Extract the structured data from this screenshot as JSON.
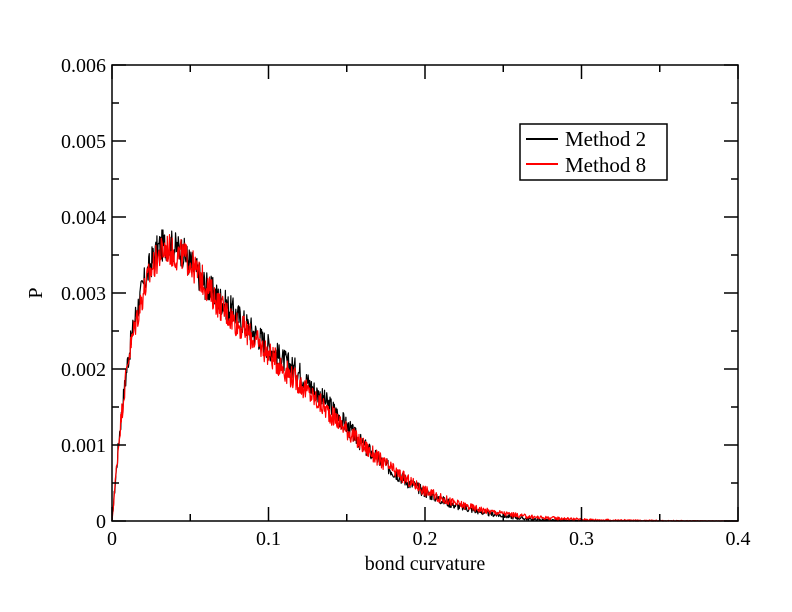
{
  "chart_data": {
    "type": "line",
    "title": "",
    "xlabel": "bond curvature",
    "ylabel": "P",
    "xlim": [
      0,
      0.4
    ],
    "ylim": [
      0,
      0.006
    ],
    "xticks": [
      "0",
      "0.1",
      "0.2",
      "0.3",
      "0.4"
    ],
    "yticks": [
      "0",
      "0.001",
      "0.002",
      "0.003",
      "0.004",
      "0.005",
      "0.006"
    ],
    "grid": false,
    "legend_position": "top-right",
    "series": [
      {
        "name": "Method 2",
        "color": "#000000",
        "x": [
          0,
          0.005,
          0.01,
          0.015,
          0.02,
          0.025,
          0.03,
          0.035,
          0.04,
          0.045,
          0.05,
          0.06,
          0.07,
          0.08,
          0.09,
          0.1,
          0.11,
          0.12,
          0.13,
          0.14,
          0.15,
          0.16,
          0.17,
          0.18,
          0.19,
          0.2,
          0.21,
          0.22,
          0.23,
          0.24,
          0.25,
          0.26,
          0.27,
          0.28,
          0.29,
          0.3,
          0.32,
          0.34,
          0.36,
          0.38,
          0.4
        ],
        "y": [
          0,
          0.0012,
          0.0021,
          0.0027,
          0.0031,
          0.0034,
          0.0036,
          0.00365,
          0.0036,
          0.00355,
          0.0034,
          0.0031,
          0.0029,
          0.0027,
          0.0025,
          0.0023,
          0.0021,
          0.00195,
          0.0017,
          0.0015,
          0.00125,
          0.001,
          0.00082,
          0.00065,
          0.0005,
          0.00038,
          0.00028,
          0.0002,
          0.00015,
          0.0001,
          7e-05,
          4e-05,
          2e-05,
          1e-05,
          5e-06,
          3e-06,
          2e-06,
          1e-06,
          0,
          0,
          0
        ]
      },
      {
        "name": "Method 8",
        "color": "#ff0000",
        "x": [
          0,
          0.005,
          0.01,
          0.015,
          0.02,
          0.025,
          0.03,
          0.035,
          0.04,
          0.045,
          0.05,
          0.06,
          0.07,
          0.08,
          0.09,
          0.1,
          0.11,
          0.12,
          0.13,
          0.14,
          0.15,
          0.16,
          0.17,
          0.18,
          0.19,
          0.2,
          0.21,
          0.22,
          0.23,
          0.24,
          0.25,
          0.26,
          0.27,
          0.28,
          0.29,
          0.3,
          0.32,
          0.34,
          0.36,
          0.38,
          0.4
        ],
        "y": [
          0,
          0.0012,
          0.0021,
          0.0026,
          0.003,
          0.0033,
          0.0035,
          0.0036,
          0.0035,
          0.0035,
          0.0034,
          0.0031,
          0.0028,
          0.0026,
          0.0024,
          0.0022,
          0.002,
          0.0018,
          0.0016,
          0.0014,
          0.0012,
          0.001,
          0.00082,
          0.00066,
          0.00052,
          0.0004,
          0.0003,
          0.00023,
          0.00018,
          0.00013,
          0.0001,
          7e-05,
          5e-05,
          4e-05,
          3e-05,
          2e-05,
          1e-05,
          6e-06,
          3e-06,
          1e-06,
          0
        ]
      }
    ]
  }
}
